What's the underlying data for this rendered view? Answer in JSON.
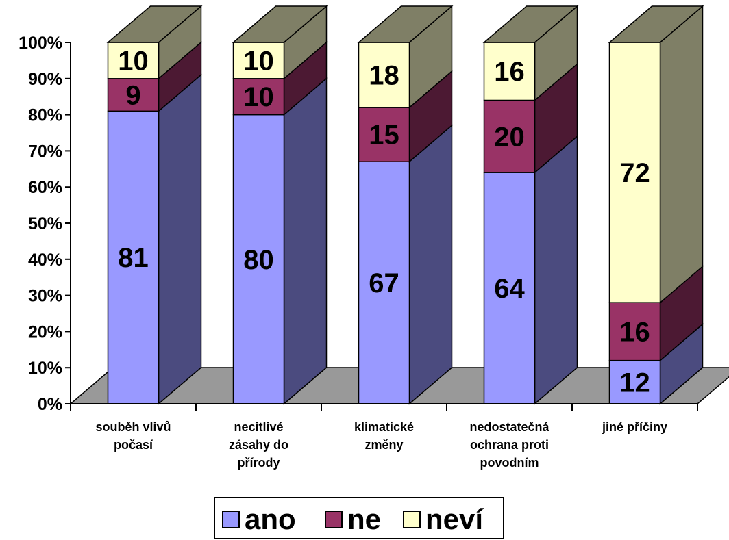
{
  "chart_data": {
    "type": "bar",
    "stacked": true,
    "percent": true,
    "three_d": true,
    "categories": [
      [
        "souběh vlivů",
        "počasí"
      ],
      [
        "necitlivé",
        "zásahy do",
        "přírody"
      ],
      [
        "klimatické",
        "změny"
      ],
      [
        "nedostatečná",
        "ochrana proti",
        "povodním"
      ],
      [
        "jiné příčiny"
      ]
    ],
    "series": [
      {
        "name": "ano",
        "values": [
          81,
          80,
          67,
          64,
          12
        ],
        "color": "#9999FF",
        "side": "#4B4B7F"
      },
      {
        "name": "ne",
        "values": [
          9,
          10,
          15,
          20,
          16
        ],
        "color": "#993366",
        "side": "#4C1933"
      },
      {
        "name": "neví",
        "values": [
          10,
          10,
          18,
          16,
          72
        ],
        "color": "#FFFFCC",
        "side": "#7F7F66"
      }
    ],
    "y_ticks": [
      "0%",
      "10%",
      "20%",
      "30%",
      "40%",
      "50%",
      "60%",
      "70%",
      "80%",
      "90%",
      "100%"
    ],
    "ylim": [
      0,
      100
    ],
    "grid": false,
    "legend_position": "bottom",
    "floor_color": "#999999"
  }
}
